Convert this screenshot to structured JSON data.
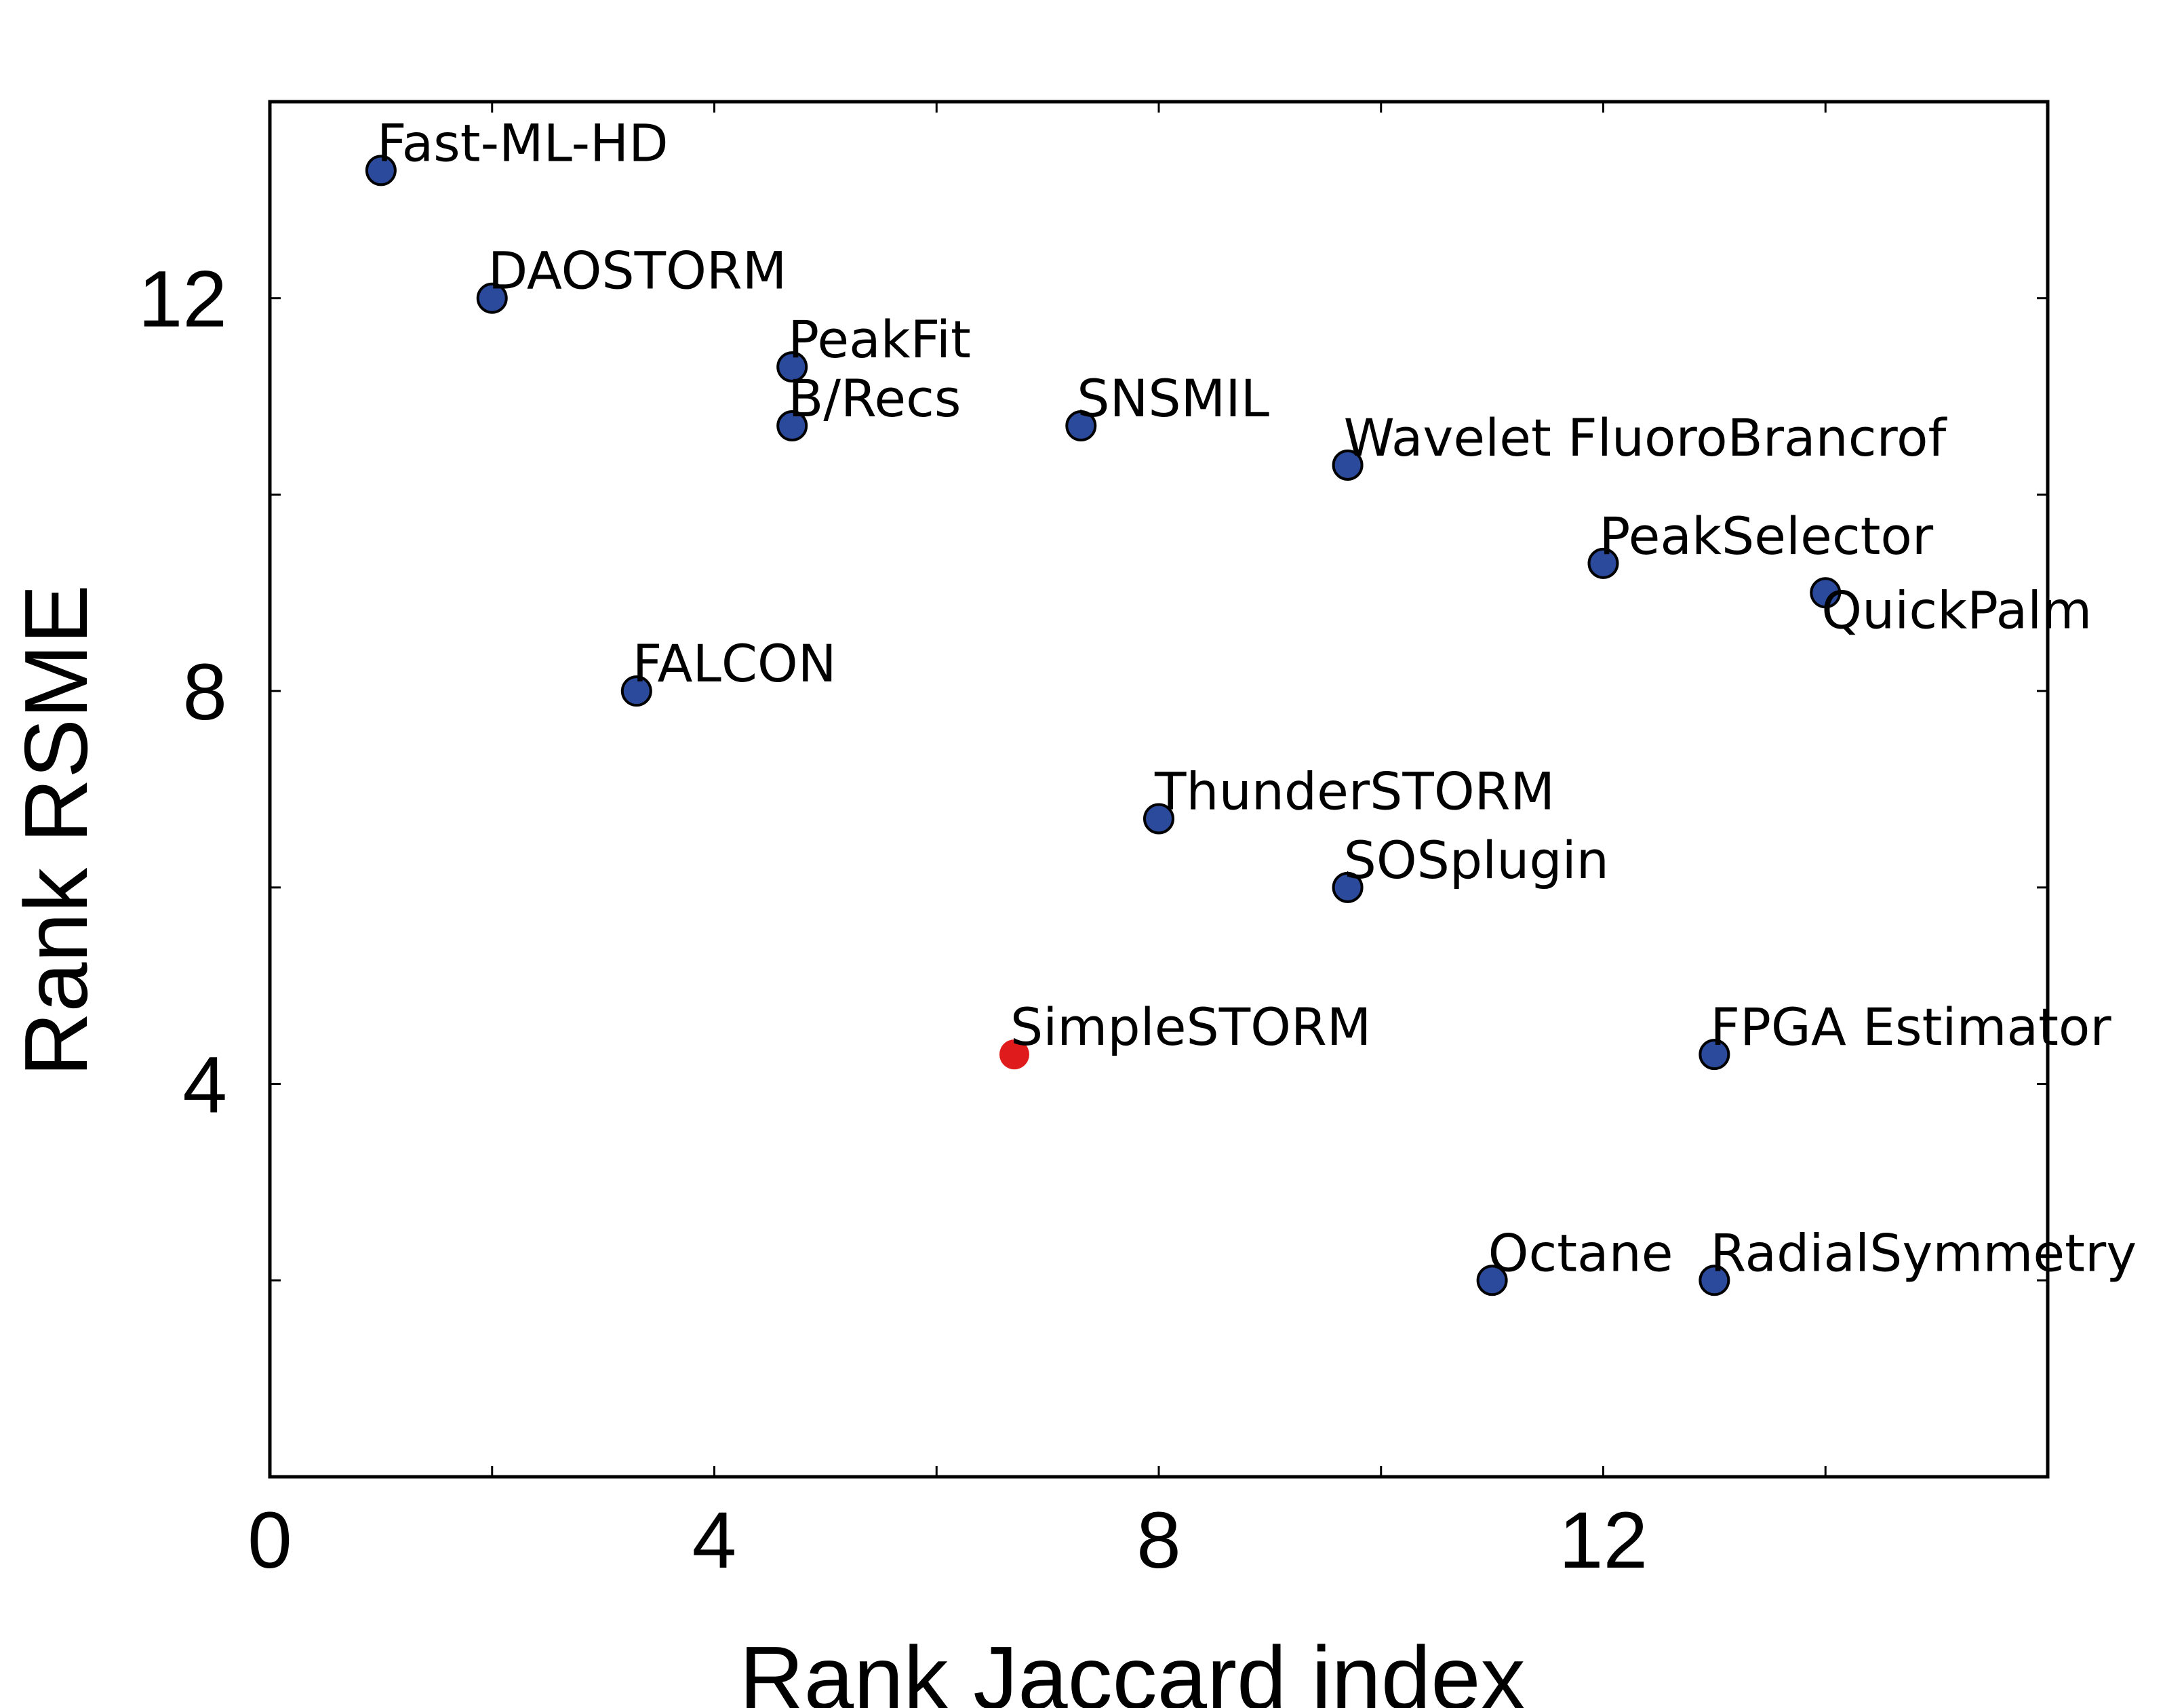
{
  "chart_data": {
    "type": "scatter",
    "title": "",
    "xlabel": "Rank Jaccard index",
    "ylabel": "Rank RSME",
    "xlim": [
      0,
      16
    ],
    "ylim": [
      0,
      14
    ],
    "xticks": [
      0,
      2,
      4,
      6,
      8,
      10,
      12,
      14,
      16
    ],
    "yticks": [
      2,
      4,
      6,
      8,
      10,
      12
    ],
    "x_tick_labels": [
      {
        "value": 0,
        "label": "0"
      },
      {
        "value": 4,
        "label": "4"
      },
      {
        "value": 8,
        "label": "8"
      },
      {
        "value": 12,
        "label": "12"
      }
    ],
    "y_tick_labels": [
      {
        "value": 4,
        "label": "4"
      },
      {
        "value": 8,
        "label": "8"
      },
      {
        "value": 12,
        "label": "12"
      }
    ],
    "grid": false,
    "colors": {
      "default": "#2b4a9c",
      "highlight": "#e01b1b"
    },
    "points": [
      {
        "label": "Fast-ML-HD",
        "x": 1,
        "y": 13.3,
        "color": "default",
        "label_pos": "above-right"
      },
      {
        "label": "DAOSTORM",
        "x": 2,
        "y": 12,
        "color": "default",
        "label_pos": "above-right"
      },
      {
        "label": "PeakFit",
        "x": 4.7,
        "y": 11.3,
        "color": "default",
        "label_pos": "above-right"
      },
      {
        "label": "B/Recs",
        "x": 4.7,
        "y": 10.7,
        "color": "default",
        "label_pos": "above-right"
      },
      {
        "label": "SNSMIL",
        "x": 7.3,
        "y": 10.7,
        "color": "default",
        "label_pos": "above-right"
      },
      {
        "label": "Wavelet FluoroBrancrof",
        "x": 9.7,
        "y": 10.3,
        "color": "default",
        "label_pos": "above-right"
      },
      {
        "label": "PeakSelector",
        "x": 12,
        "y": 9.3,
        "color": "default",
        "label_pos": "above-right"
      },
      {
        "label": "QuickPalm",
        "x": 14,
        "y": 9,
        "color": "default",
        "label_pos": "below-right"
      },
      {
        "label": "FALCON",
        "x": 3.3,
        "y": 8,
        "color": "default",
        "label_pos": "above-right"
      },
      {
        "label": "ThunderSTORM",
        "x": 8,
        "y": 6.7,
        "color": "default",
        "label_pos": "above-right"
      },
      {
        "label": "SOSplugin",
        "x": 9.7,
        "y": 6,
        "color": "default",
        "label_pos": "above-right"
      },
      {
        "label": "SimpleSTORM",
        "x": 6.7,
        "y": 4.3,
        "color": "highlight",
        "label_pos": "above-right"
      },
      {
        "label": "FPGA Estimator",
        "x": 13,
        "y": 4.3,
        "color": "default",
        "label_pos": "above-right"
      },
      {
        "label": "Octane",
        "x": 11,
        "y": 2,
        "color": "default",
        "label_pos": "above-right"
      },
      {
        "label": "RadialSymmetry",
        "x": 13,
        "y": 2,
        "color": "default",
        "label_pos": "above-right"
      }
    ]
  }
}
